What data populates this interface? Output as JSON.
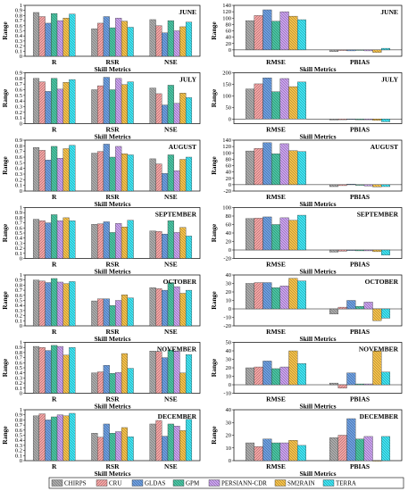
{
  "legend": [
    {
      "name": "CHIRPS",
      "color": "#aaaaaa",
      "pattern": "back"
    },
    {
      "name": "CRU",
      "color": "#f4a3a3",
      "pattern": "fwd"
    },
    {
      "name": "GLDAS",
      "color": "#6c9ee0",
      "pattern": "back"
    },
    {
      "name": "GPM",
      "color": "#49c4a2",
      "pattern": "back"
    },
    {
      "name": "PERSIANN-CDR",
      "color": "#c9a0ee",
      "pattern": "back"
    },
    {
      "name": "SM2RAIN",
      "color": "#f5c14a",
      "pattern": "back"
    },
    {
      "name": "TERRA",
      "color": "#3ee4f2",
      "pattern": "back"
    }
  ],
  "chart_data": [
    {
      "type": "bar",
      "panel": "left",
      "month": "JUNE",
      "categories": [
        "R",
        "RSR",
        "NSE"
      ],
      "ylim": [
        0,
        1.0
      ],
      "yticks": [
        0,
        0.1,
        0.2,
        0.3,
        0.4,
        0.5,
        0.6,
        0.7,
        0.8,
        0.9,
        1.0
      ],
      "ylabel": "Range",
      "xlabel": "Skill Metrics",
      "values": [
        [
          0.86,
          0.78,
          0.65,
          0.84,
          0.7,
          0.75,
          0.83
        ],
        [
          0.54,
          0.65,
          0.78,
          0.56,
          0.75,
          0.69,
          0.57
        ],
        [
          0.72,
          0.6,
          0.46,
          0.7,
          0.5,
          0.58,
          0.67
        ]
      ]
    },
    {
      "type": "bar",
      "panel": "right",
      "month": "JUNE",
      "categories": [
        "RMSE",
        "PBIAS"
      ],
      "ylim": [
        -20,
        140
      ],
      "yticks": [
        0,
        20,
        40,
        60,
        80,
        100,
        120,
        140
      ],
      "ylabel": "Range",
      "xlabel": "Skill Metrics",
      "values": [
        [
          92,
          108,
          126,
          90,
          120,
          106,
          95
        ],
        [
          -5,
          -2,
          -3,
          -1,
          -3,
          -8,
          5
        ]
      ]
    },
    {
      "type": "bar",
      "panel": "left",
      "month": "JULY",
      "categories": [
        "R",
        "RSR",
        "NSE"
      ],
      "ylim": [
        0,
        0.9
      ],
      "yticks": [
        0,
        0.1,
        0.2,
        0.3,
        0.4,
        0.5,
        0.6,
        0.7,
        0.8,
        0.9
      ],
      "ylabel": "Range",
      "xlabel": "Skill Metrics",
      "values": [
        [
          0.8,
          0.74,
          0.57,
          0.8,
          0.61,
          0.73,
          0.78
        ],
        [
          0.6,
          0.67,
          0.82,
          0.6,
          0.8,
          0.69,
          0.74
        ],
        [
          0.63,
          0.53,
          0.33,
          0.68,
          0.36,
          0.54,
          0.46
        ]
      ]
    },
    {
      "type": "bar",
      "panel": "right",
      "month": "JULY",
      "categories": [
        "RMSE",
        "PBIAS"
      ],
      "ylim": [
        -20,
        200
      ],
      "yticks": [
        0,
        50,
        100,
        150,
        200
      ],
      "ylabel": "Range",
      "xlabel": "Skill Metrics",
      "values": [
        [
          130,
          152,
          178,
          118,
          175,
          140,
          160
        ],
        [
          -4,
          -3,
          -2,
          -3,
          -3,
          -6,
          -12
        ]
      ]
    },
    {
      "type": "bar",
      "panel": "left",
      "month": "AUGUST",
      "categories": [
        "R",
        "RSR",
        "NSE"
      ],
      "ylim": [
        0,
        0.9
      ],
      "yticks": [
        0,
        0.1,
        0.2,
        0.3,
        0.4,
        0.5,
        0.6,
        0.7,
        0.8,
        0.9
      ],
      "ylabel": "Range",
      "xlabel": "Skill Metrics",
      "values": [
        [
          0.77,
          0.72,
          0.55,
          0.79,
          0.58,
          0.75,
          0.81
        ],
        [
          0.67,
          0.7,
          0.83,
          0.6,
          0.79,
          0.66,
          0.64
        ],
        [
          0.57,
          0.48,
          0.31,
          0.64,
          0.36,
          0.56,
          0.6
        ]
      ]
    },
    {
      "type": "bar",
      "panel": "right",
      "month": "AUGUST",
      "categories": [
        "RMSE",
        "PBIAS"
      ],
      "ylim": [
        -20,
        140
      ],
      "yticks": [
        -20,
        0,
        20,
        40,
        60,
        80,
        100,
        120,
        140
      ],
      "ylabel": "Range",
      "xlabel": "Skill Metrics",
      "values": [
        [
          106,
          114,
          132,
          97,
          129,
          107,
          104
        ],
        [
          -6,
          -3,
          2,
          -2,
          -4,
          -7,
          -6
        ]
      ]
    },
    {
      "type": "bar",
      "panel": "left",
      "month": "SEPTEMBER",
      "categories": [
        "R",
        "RSR",
        "NSE"
      ],
      "ylim": [
        0,
        1.0
      ],
      "yticks": [
        0,
        0.1,
        0.2,
        0.3,
        0.4,
        0.5,
        0.6,
        0.7,
        0.8,
        0.9,
        1.0
      ],
      "ylabel": "Range",
      "xlabel": "Skill Metrics",
      "values": [
        [
          0.77,
          0.74,
          0.7,
          0.86,
          0.74,
          0.8,
          0.74
        ],
        [
          0.67,
          0.68,
          0.72,
          0.51,
          0.69,
          0.62,
          0.75
        ],
        [
          0.54,
          0.53,
          0.48,
          0.74,
          0.51,
          0.61,
          0.44
        ]
      ]
    },
    {
      "type": "bar",
      "panel": "right",
      "month": "SEPTEMBER",
      "categories": [
        "RMSE",
        "PBIAS"
      ],
      "ylim": [
        -20,
        100
      ],
      "yticks": [
        -20,
        0,
        20,
        40,
        60,
        80,
        100
      ],
      "ylabel": "Range",
      "xlabel": "Skill Metrics",
      "values": [
        [
          74,
          75,
          78,
          60,
          76,
          70,
          82
        ],
        [
          -5,
          -3,
          -1,
          -2,
          -2,
          -4,
          -12
        ]
      ]
    },
    {
      "type": "bar",
      "panel": "left",
      "month": "OCTOBER",
      "categories": [
        "R",
        "RSR",
        "NSE"
      ],
      "ylim": [
        0,
        1.0
      ],
      "yticks": [
        0,
        0.1,
        0.2,
        0.3,
        0.4,
        0.5,
        0.6,
        0.7,
        0.8,
        0.9,
        1.0
      ],
      "ylabel": "Range",
      "xlabel": "Skill Metrics",
      "values": [
        [
          0.9,
          0.88,
          0.85,
          0.93,
          0.86,
          0.83,
          0.87
        ],
        [
          0.49,
          0.53,
          0.53,
          0.4,
          0.5,
          0.61,
          0.55
        ],
        [
          0.75,
          0.73,
          0.7,
          0.85,
          0.77,
          0.64,
          0.7
        ]
      ]
    },
    {
      "type": "bar",
      "panel": "right",
      "month": "OCTOBER",
      "categories": [
        "RMSE",
        "PBIAS"
      ],
      "ylim": [
        -20,
        40
      ],
      "yticks": [
        -20,
        -10,
        0,
        10,
        20,
        30,
        40
      ],
      "ylabel": "Range",
      "xlabel": "Skill Metrics",
      "values": [
        [
          30,
          31,
          31,
          25,
          27,
          36,
          33
        ],
        [
          -6,
          2,
          10,
          3,
          8,
          -14,
          -11
        ]
      ]
    },
    {
      "type": "bar",
      "panel": "left",
      "month": "NOVEMBER",
      "categories": [
        "R",
        "RSR",
        "NSE"
      ],
      "ylim": [
        0,
        1.0
      ],
      "yticks": [
        0,
        0.1,
        0.2,
        0.3,
        0.4,
        0.5,
        0.6,
        0.7,
        0.8,
        0.9,
        1.0
      ],
      "ylabel": "Range",
      "xlabel": "Skill Metrics",
      "values": [
        [
          0.92,
          0.9,
          0.84,
          0.94,
          0.92,
          0.75,
          0.9
        ],
        [
          0.4,
          0.42,
          0.55,
          0.39,
          0.41,
          0.78,
          0.49
        ],
        [
          0.83,
          0.82,
          0.7,
          0.85,
          0.83,
          0.4,
          0.76
        ]
      ]
    },
    {
      "type": "bar",
      "panel": "right",
      "month": "NOVEMBER",
      "categories": [
        "RMSE",
        "PBIAS"
      ],
      "ylim": [
        -10,
        50
      ],
      "yticks": [
        -10,
        0,
        10,
        20,
        30,
        40,
        50
      ],
      "ylabel": "Range",
      "xlabel": "Skill Metrics",
      "values": [
        [
          20,
          21,
          28,
          19,
          21,
          40,
          25
        ],
        [
          2,
          -4,
          14,
          1,
          1,
          40,
          15
        ]
      ]
    },
    {
      "type": "bar",
      "panel": "left",
      "month": "DECEMBER",
      "categories": [
        "R",
        "RSR",
        "NSE"
      ],
      "ylim": [
        0,
        1.0
      ],
      "yticks": [
        0,
        0.1,
        0.2,
        0.3,
        0.4,
        0.5,
        0.6,
        0.7,
        0.8,
        0.9,
        1.0
      ],
      "ylabel": "Range",
      "xlabel": "Skill Metrics",
      "values": [
        [
          0.88,
          0.92,
          0.8,
          0.86,
          0.9,
          0.88,
          0.93
        ],
        [
          0.54,
          0.46,
          0.72,
          0.54,
          0.57,
          0.65,
          0.47
        ],
        [
          0.72,
          0.79,
          0.48,
          0.72,
          0.68,
          0.59,
          0.81
        ]
      ]
    },
    {
      "type": "bar",
      "panel": "right",
      "month": "DECEMBER",
      "categories": [
        "RMSE",
        "PBIAS"
      ],
      "ylim": [
        0,
        40
      ],
      "yticks": [
        0,
        10,
        20,
        30,
        40
      ],
      "ylabel": "Range",
      "xlabel": "Skill Metrics",
      "values": [
        [
          14,
          11,
          17,
          14,
          14,
          16,
          12
        ],
        [
          18,
          20,
          33,
          17,
          19,
          0,
          19
        ]
      ]
    }
  ]
}
